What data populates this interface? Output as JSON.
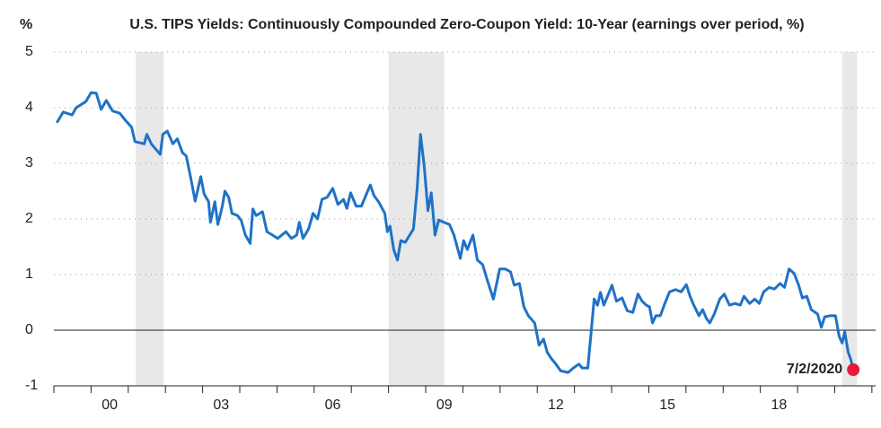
{
  "chart_data": {
    "type": "line",
    "title": "U.S. TIPS Yields: Continuously Compounded Zero-Coupon Yield: 10-Year (earnings over period, %)",
    "y_unit": "%",
    "color": "#1f72c6",
    "x": [
      1999.08,
      1999.25,
      1999.49,
      1999.6,
      1999.86,
      2000.0,
      2000.14,
      2000.27,
      2000.41,
      2000.58,
      2000.77,
      2000.94,
      2001.09,
      2001.18,
      2001.43,
      2001.5,
      2001.62,
      2001.86,
      2001.93,
      2002.05,
      2002.2,
      2002.32,
      2002.46,
      2002.56,
      2002.68,
      2002.8,
      2002.95,
      2003.04,
      2003.16,
      2003.21,
      2003.33,
      2003.41,
      2003.53,
      2003.6,
      2003.7,
      2003.79,
      2003.94,
      2004.04,
      2004.15,
      2004.28,
      2004.35,
      2004.44,
      2004.61,
      2004.73,
      2004.88,
      2005.02,
      2005.24,
      2005.39,
      2005.53,
      2005.6,
      2005.7,
      2005.85,
      2005.97,
      2006.09,
      2006.21,
      2006.35,
      2006.5,
      2006.64,
      2006.79,
      2006.88,
      2006.98,
      2007.13,
      2007.27,
      2007.42,
      2007.51,
      2007.61,
      2007.75,
      2007.9,
      2007.97,
      2008.04,
      2008.14,
      2008.24,
      2008.33,
      2008.45,
      2008.57,
      2008.67,
      2008.77,
      2008.86,
      2008.96,
      2009.06,
      2009.15,
      2009.25,
      2009.35,
      2009.49,
      2009.64,
      2009.76,
      2009.93,
      2010.02,
      2010.12,
      2010.27,
      2010.39,
      2010.53,
      2010.68,
      2010.82,
      2010.99,
      2011.14,
      2011.28,
      2011.38,
      2011.52,
      2011.64,
      2011.76,
      2011.93,
      2012.05,
      2012.17,
      2012.27,
      2012.39,
      2012.49,
      2012.63,
      2012.83,
      2012.97,
      2013.12,
      2013.21,
      2013.36,
      2013.45,
      2013.53,
      2013.62,
      2013.7,
      2013.79,
      2013.89,
      2014.01,
      2014.13,
      2014.28,
      2014.42,
      2014.57,
      2014.71,
      2014.81,
      2014.93,
      2015.02,
      2015.1,
      2015.19,
      2015.31,
      2015.43,
      2015.56,
      2015.72,
      2015.87,
      2016.01,
      2016.11,
      2016.21,
      2016.35,
      2016.45,
      2016.55,
      2016.64,
      2016.76,
      2016.91,
      2017.03,
      2017.17,
      2017.32,
      2017.46,
      2017.56,
      2017.71,
      2017.85,
      2017.97,
      2018.09,
      2018.24,
      2018.38,
      2018.53,
      2018.65,
      2018.77,
      2018.91,
      2019.03,
      2019.13,
      2019.25,
      2019.37,
      2019.54,
      2019.64,
      2019.73,
      2019.88,
      2020.02,
      2020.12,
      2020.2,
      2020.27,
      2020.36,
      2020.43,
      2020.5
    ],
    "values": [
      3.73,
      3.92,
      3.87,
      4.0,
      4.11,
      4.27,
      4.26,
      3.97,
      4.13,
      3.94,
      3.9,
      3.76,
      3.65,
      3.39,
      3.35,
      3.52,
      3.35,
      3.16,
      3.52,
      3.58,
      3.35,
      3.44,
      3.19,
      3.13,
      2.74,
      2.32,
      2.76,
      2.45,
      2.31,
      1.94,
      2.31,
      1.9,
      2.23,
      2.5,
      2.39,
      2.1,
      2.06,
      1.97,
      1.71,
      1.56,
      2.18,
      2.06,
      2.13,
      1.77,
      1.71,
      1.65,
      1.77,
      1.65,
      1.71,
      1.94,
      1.65,
      1.82,
      2.1,
      2.0,
      2.35,
      2.39,
      2.55,
      2.26,
      2.35,
      2.19,
      2.47,
      2.23,
      2.23,
      2.47,
      2.61,
      2.42,
      2.29,
      2.1,
      1.77,
      1.87,
      1.45,
      1.26,
      1.61,
      1.58,
      1.71,
      1.82,
      2.55,
      3.52,
      2.95,
      2.15,
      2.47,
      1.71,
      1.98,
      1.94,
      1.9,
      1.71,
      1.29,
      1.61,
      1.45,
      1.71,
      1.26,
      1.18,
      0.85,
      0.56,
      1.1,
      1.1,
      1.05,
      0.81,
      0.84,
      0.42,
      0.26,
      0.13,
      -0.27,
      -0.16,
      -0.4,
      -0.52,
      -0.6,
      -0.73,
      -0.76,
      -0.68,
      -0.61,
      -0.68,
      -0.68,
      -0.03,
      0.56,
      0.45,
      0.68,
      0.45,
      0.61,
      0.81,
      0.52,
      0.58,
      0.35,
      0.32,
      0.65,
      0.53,
      0.45,
      0.42,
      0.13,
      0.26,
      0.26,
      0.48,
      0.69,
      0.73,
      0.69,
      0.82,
      0.61,
      0.45,
      0.26,
      0.37,
      0.21,
      0.13,
      0.29,
      0.56,
      0.65,
      0.45,
      0.48,
      0.45,
      0.61,
      0.48,
      0.56,
      0.48,
      0.69,
      0.77,
      0.74,
      0.84,
      0.77,
      1.1,
      1.02,
      0.81,
      0.58,
      0.61,
      0.37,
      0.29,
      0.05,
      0.24,
      0.26,
      0.26,
      -0.11,
      -0.23,
      -0.03,
      -0.39,
      -0.52,
      -0.71
    ],
    "xlim": [
      1999,
      2021.1
    ],
    "xticks": [
      1999,
      2000,
      2001,
      2002,
      2003,
      2004,
      2005,
      2006,
      2007,
      2008,
      2009,
      2010,
      2011,
      2012,
      2013,
      2014,
      2015,
      2016,
      2017,
      2018,
      2019,
      2020,
      2021
    ],
    "xtick_labels": [
      {
        "value": 2000,
        "label": "00"
      },
      {
        "value": 2003,
        "label": "03"
      },
      {
        "value": 2006,
        "label": "06"
      },
      {
        "value": 2009,
        "label": "09"
      },
      {
        "value": 2012,
        "label": "12"
      },
      {
        "value": 2015,
        "label": "15"
      },
      {
        "value": 2018,
        "label": "18"
      }
    ],
    "ylim": [
      -1,
      5
    ],
    "yticks": [
      -1,
      0,
      1,
      2,
      3,
      4,
      5
    ],
    "grid": true,
    "recessions": [
      [
        2001.2,
        2001.95
      ],
      [
        2008.0,
        2009.5
      ],
      [
        2020.2,
        2020.6
      ]
    ],
    "recession_color": "#e8e8e8",
    "annotation": {
      "text": "7/2/2020",
      "color": "#e8193c"
    }
  }
}
